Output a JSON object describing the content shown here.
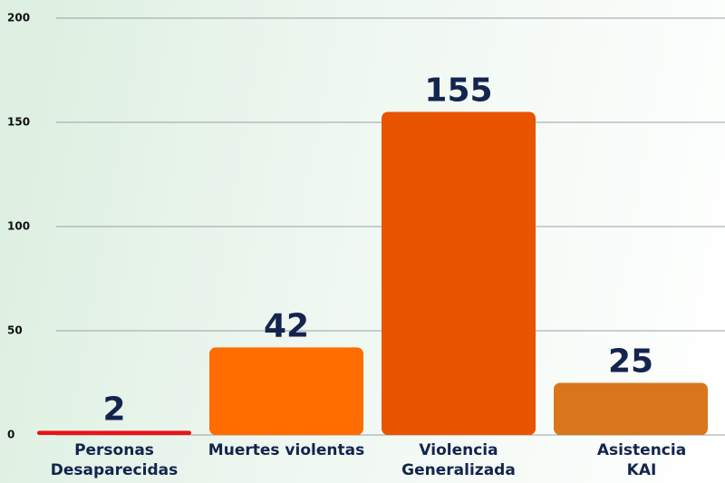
{
  "chart_data": {
    "type": "bar",
    "categories": [
      "Personas Desaparecidas",
      "Muertes violentas",
      "Violencia Generalizada",
      "Asistencia KAI"
    ],
    "values": [
      2,
      42,
      155,
      25
    ],
    "colors": [
      "#e8141a",
      "#ff6c00",
      "#e85400",
      "#d9761c"
    ],
    "ylim": [
      0,
      200
    ],
    "yticks": [
      0,
      50,
      100,
      150,
      200
    ],
    "grid": true
  }
}
